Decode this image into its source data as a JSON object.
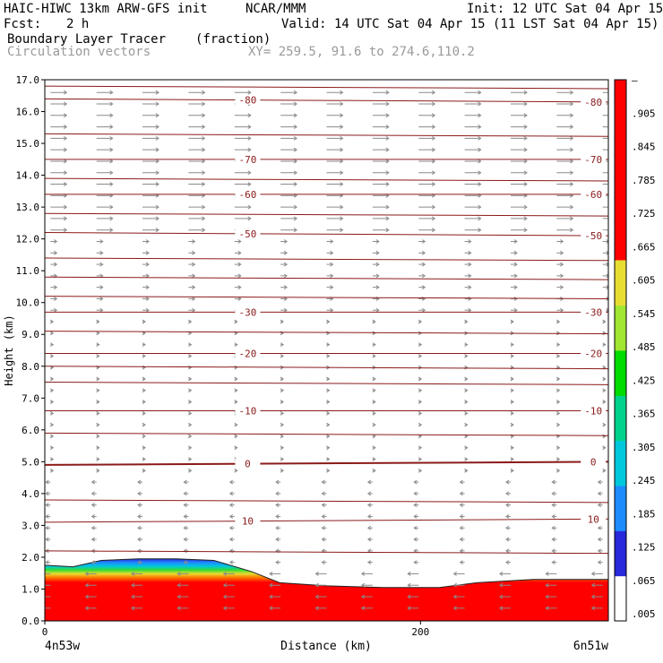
{
  "header": {
    "model": "HAIC-HIWC 13km ARW-GFS init",
    "org": "NCAR/MMM",
    "init": "Init: 12 UTC Sat 04 Apr 15",
    "fcst_label": "Fcst:",
    "fcst_value": "2 h",
    "valid": "Valid: 14 UTC Sat 04 Apr 15 (11 LST Sat 04 Apr 15)",
    "field1": "Boundary Layer Tracer",
    "field1_units": "(fraction)",
    "field2": "Circulation vectors",
    "xy": "XY= 259.5, 91.6 to 274.6,110.2"
  },
  "chart_data": {
    "type": "heatmap",
    "title": "Boundary Layer Tracer",
    "units": "(fraction)",
    "xlabel": "Distance (km)",
    "ylabel": "Height (km)",
    "xlim": [
      0,
      300
    ],
    "ylim": [
      0,
      17
    ],
    "xticks": [
      0,
      200
    ],
    "yticks": [
      "0.0",
      "1.0",
      "2.0",
      "3.0",
      "4.0",
      "5.0",
      "6.0",
      "7.0",
      "8.0",
      "9.0",
      "10.0",
      "11.0",
      "12.0",
      "13.0",
      "14.0",
      "15.0",
      "16.0",
      "17.0"
    ],
    "x_end_labels": {
      "left": "4n53w",
      "right": "6n51w"
    },
    "colorbar": {
      "labels": [
        ".005",
        ".065",
        ".125",
        ".185",
        ".245",
        ".305",
        ".365",
        ".425",
        ".485",
        ".545",
        ".605",
        ".665",
        ".725",
        ".785",
        ".845",
        ".905",
        "–"
      ],
      "colors": [
        "#ffffff",
        "#2828dc",
        "#1e8cff",
        "#00c8dc",
        "#00d28c",
        "#00dc00",
        "#a0e632",
        "#e6dc32",
        "#e6af2d",
        "#f08228",
        "#fa3c3c",
        "#f00082"
      ]
    },
    "tracer_boundary_height_km": [
      {
        "x": 0,
        "top": 1.75
      },
      {
        "x": 15,
        "top": 1.7
      },
      {
        "x": 30,
        "top": 1.9
      },
      {
        "x": 50,
        "top": 1.95
      },
      {
        "x": 70,
        "top": 1.95
      },
      {
        "x": 90,
        "top": 1.9
      },
      {
        "x": 110,
        "top": 1.55
      },
      {
        "x": 125,
        "top": 1.2
      },
      {
        "x": 150,
        "top": 1.1
      },
      {
        "x": 180,
        "top": 1.05
      },
      {
        "x": 210,
        "top": 1.05
      },
      {
        "x": 230,
        "top": 1.2
      },
      {
        "x": 260,
        "top": 1.3
      },
      {
        "x": 300,
        "top": 1.3
      }
    ],
    "temperature_contours_C": [
      {
        "value": "-80",
        "height_left": 16.4,
        "height_right": 16.3
      },
      {
        "value": "-70",
        "height_left": 14.5,
        "height_right": 14.5
      },
      {
        "value": "-60",
        "height_left": 13.4,
        "height_right": 13.4
      },
      {
        "value": "-50",
        "height_left": 12.2,
        "height_right": 12.1
      },
      {
        "value": "-30",
        "height_left": 9.7,
        "height_right": 9.7
      },
      {
        "value": "-20",
        "height_left": 8.4,
        "height_right": 8.4
      },
      {
        "value": "-10",
        "height_left": 6.6,
        "height_right": 6.6
      },
      {
        "value": "0",
        "height_left": 4.9,
        "height_right": 5.0
      },
      {
        "value": "10",
        "height_left": 3.1,
        "height_right": 3.2
      }
    ],
    "unlabeled_contour_heights_km": [
      16.8,
      15.3,
      13.9,
      12.8,
      11.4,
      10.8,
      10.2,
      9.1,
      8.0,
      7.5,
      5.9,
      3.8,
      2.2
    ],
    "vectors": "westerly (left-to-right) aloft, weak near-zero flow mid-levels, easterly (right-to-left) near the surface"
  }
}
